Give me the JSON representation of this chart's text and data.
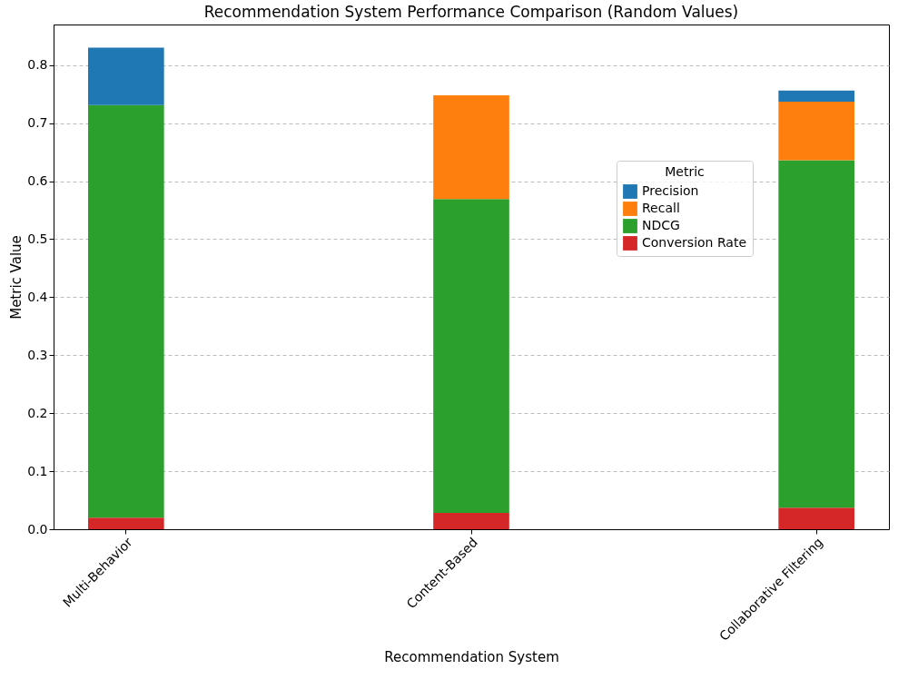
{
  "chart_data": {
    "type": "bar",
    "title": "Recommendation System Performance Comparison (Random Values)",
    "xlabel": "Recommendation System",
    "ylabel": "Metric Value",
    "legend_title": "Metric",
    "categories": [
      "Multi-Behavior",
      "Content-Based",
      "Collaborative Filtering"
    ],
    "series": [
      {
        "name": "Conversion Rate",
        "color": "#d62728",
        "values": [
          0.02,
          0.028,
          0.037
        ]
      },
      {
        "name": "NDCG",
        "color": "#2ca02c",
        "values": [
          0.711,
          0.541,
          0.599
        ]
      },
      {
        "name": "Recall",
        "color": "#ff7f0e",
        "values": [
          null,
          0.179,
          0.101
        ]
      },
      {
        "name": "Precision",
        "color": "#1f77b4",
        "values": [
          0.099,
          null,
          0.019
        ]
      }
    ],
    "stacked": true,
    "ylim": [
      0,
      0.87
    ],
    "yticks": [
      {
        "value": 0,
        "label": "0.0"
      },
      {
        "value": 0.1,
        "label": "0.1"
      },
      {
        "value": 0.2,
        "label": "0.2"
      },
      {
        "value": 0.3,
        "label": "0.3"
      },
      {
        "value": 0.4,
        "label": "0.4"
      },
      {
        "value": 0.5,
        "label": "0.5"
      },
      {
        "value": 0.6,
        "label": "0.6"
      },
      {
        "value": 0.7,
        "label": "0.7"
      },
      {
        "value": 0.8,
        "label": "0.8"
      }
    ],
    "grid": "y",
    "legend": "top right"
  }
}
